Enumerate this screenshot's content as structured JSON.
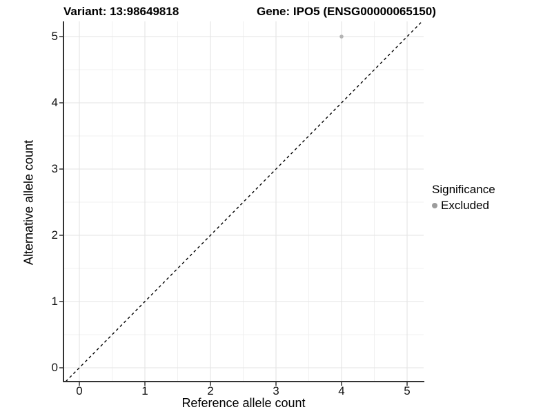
{
  "chart_data": {
    "type": "scatter",
    "titles": {
      "left": "Variant: 13:98649818",
      "right": "Gene: IPO5 (ENSG00000065150)"
    },
    "xlabel": "Reference allele count",
    "ylabel": "Alternative allele count",
    "xticks": [
      "0",
      "1",
      "2",
      "3",
      "4",
      "5"
    ],
    "yticks": [
      "0",
      "1",
      "2",
      "3",
      "4",
      "5"
    ],
    "xlim": [
      -0.24,
      5.25
    ],
    "ylim": [
      -0.21,
      5.23
    ],
    "grid": true,
    "minor_gridline_step": 0.5,
    "points": [
      {
        "x": 4,
        "y": 5,
        "series": "Excluded"
      }
    ],
    "reference_line": {
      "kind": "identity",
      "style": "dashed",
      "color": "#000000"
    },
    "legend": {
      "title": "Significance",
      "position": "right",
      "entries": [
        {
          "label": "Excluded",
          "color": "#9c9c9c"
        }
      ]
    },
    "colors": {
      "point": "#b4b4b4",
      "grid_major": "#e3e3e3",
      "grid_minor": "#f0f0f0",
      "axis": "#333333",
      "background": "#ffffff"
    }
  }
}
